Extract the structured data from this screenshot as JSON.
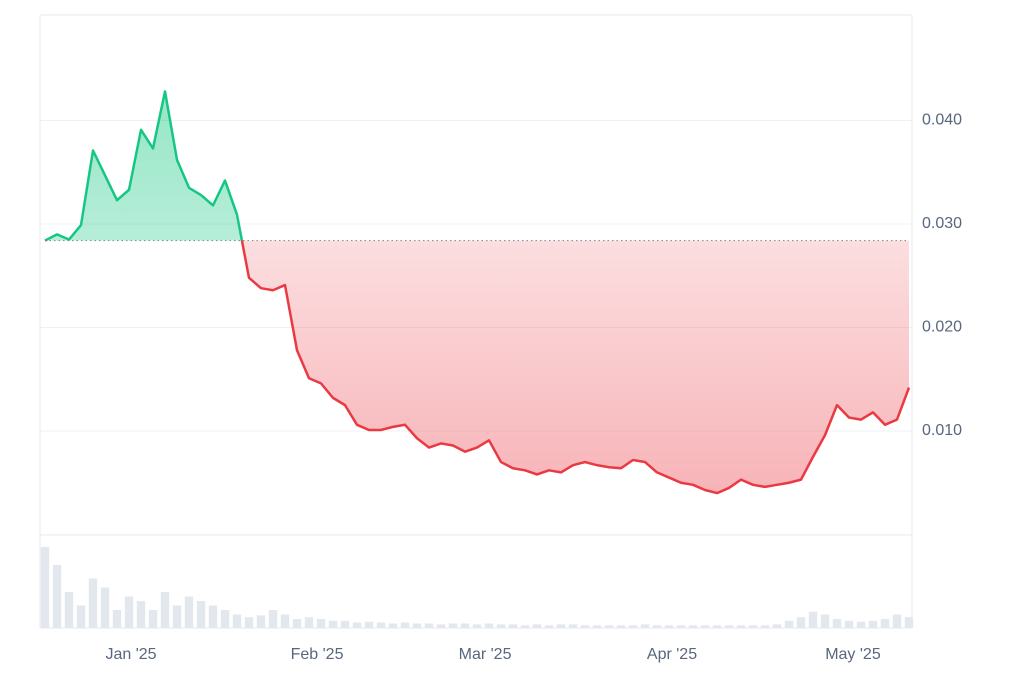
{
  "chart_data": {
    "type": "line",
    "xlim": [
      0,
      72
    ],
    "xticks": [
      {
        "value": 7.17,
        "label": "Jan '25"
      },
      {
        "value": 22.67,
        "label": "Feb '25"
      },
      {
        "value": 36.67,
        "label": "Mar '25"
      },
      {
        "value": 52.25,
        "label": "Apr '25"
      },
      {
        "value": 67.33,
        "label": "May '25"
      }
    ],
    "ylim": [
      0,
      0.05
    ],
    "yticks": [
      {
        "value": 0.01,
        "label": "0.010"
      },
      {
        "value": 0.02,
        "label": "0.020"
      },
      {
        "value": 0.03,
        "label": "0.030"
      },
      {
        "value": 0.04,
        "label": "0.040"
      }
    ],
    "grid": true,
    "baseline": 0.0284,
    "up_color": "#16c784",
    "down_color": "#ea3943",
    "series": [
      {
        "color": "#ea3943",
        "values": [
          0.0284,
          0.029,
          0.0285,
          0.0299,
          0.0371,
          0.0347,
          0.0323,
          0.0333,
          0.0391,
          0.0373,
          0.0428,
          0.0362,
          0.0335,
          0.0328,
          0.0318,
          0.0342,
          0.0309,
          0.0248,
          0.0238,
          0.0236,
          0.0241,
          0.0178,
          0.0151,
          0.0146,
          0.0132,
          0.0125,
          0.0106,
          0.0101,
          0.0101,
          0.0104,
          0.0106,
          0.0093,
          0.0084,
          0.0088,
          0.0086,
          0.008,
          0.0084,
          0.0091,
          0.007,
          0.0064,
          0.0062,
          0.0058,
          0.0062,
          0.006,
          0.0067,
          0.007,
          0.0067,
          0.0065,
          0.0064,
          0.0072,
          0.007,
          0.006,
          0.0055,
          0.005,
          0.0048,
          0.0043,
          0.004,
          0.0045,
          0.0053,
          0.0048,
          0.0046,
          0.0048,
          0.005,
          0.0053,
          0.0075,
          0.0096,
          0.0125,
          0.0113,
          0.0111,
          0.0118,
          0.0106,
          0.0111,
          0.0142
        ]
      },
      {
        "color": "#e3e7ee",
        "vlim": [
          0,
          100
        ],
        "values": [
          90,
          70,
          40,
          25,
          55,
          45,
          20,
          35,
          30,
          20,
          40,
          25,
          35,
          30,
          25,
          20,
          15,
          12,
          14,
          20,
          15,
          10,
          12,
          10,
          8,
          8,
          6,
          7,
          6,
          5,
          6,
          5,
          5,
          4,
          5,
          5,
          4,
          5,
          4,
          4,
          3,
          4,
          3,
          4,
          4,
          3,
          3,
          3,
          3,
          3,
          4,
          3,
          3,
          3,
          3,
          3,
          3,
          3,
          3,
          3,
          3,
          4,
          8,
          12,
          18,
          15,
          10,
          8,
          7,
          8,
          10,
          15,
          12
        ]
      }
    ]
  }
}
